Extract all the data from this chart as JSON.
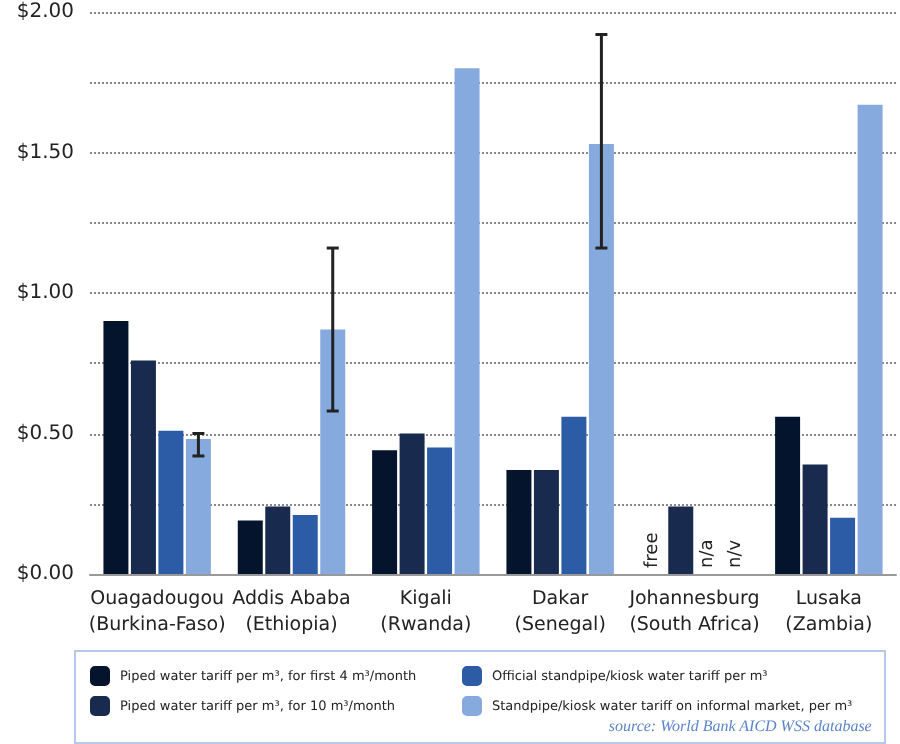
{
  "chart_data": {
    "type": "bar",
    "categories": [
      "Ouagadougou\n(Burkina-Faso)",
      "Addis Ababa\n(Ethiopia)",
      "Kigali\n(Rwanda)",
      "Dakar\n(Senegal)",
      "Johannesburg\n(South Africa)",
      "Lusaka\n(Zambia)"
    ],
    "series": [
      {
        "name": "Piped water tariff per m³, for first 4 m³/month",
        "color": "#03142c",
        "values": [
          0.9,
          0.19,
          0.44,
          0.37,
          null,
          0.56
        ],
        "value_labels": [
          null,
          null,
          null,
          null,
          "free",
          null
        ]
      },
      {
        "name": "Piped water tariff per m³, for 10 m³/month",
        "color": "#182b4f",
        "values": [
          0.76,
          0.24,
          0.5,
          0.37,
          0.24,
          0.39
        ]
      },
      {
        "name": "Official standpipe/kiosk water tariff per m³",
        "color": "#2c5ca5",
        "values": [
          0.51,
          0.21,
          0.45,
          0.56,
          null,
          0.2
        ],
        "value_labels": [
          null,
          null,
          null,
          null,
          "n/a",
          null
        ]
      },
      {
        "name": "Standpipe/kiosk water tariff on informal market, per m³",
        "color": "#87aade",
        "values": [
          0.48,
          0.87,
          1.8,
          1.53,
          null,
          1.67
        ],
        "value_labels": [
          null,
          null,
          null,
          null,
          "n/v",
          null
        ],
        "errors": [
          [
            0.42,
            0.5
          ],
          [
            0.58,
            1.16
          ],
          null,
          [
            1.16,
            1.92
          ],
          null,
          null
        ]
      }
    ],
    "ylim": [
      0,
      2
    ],
    "yticks": [
      {
        "value": 0,
        "label": "$0.00"
      },
      {
        "value": 0.25,
        "label": null
      },
      {
        "value": 0.5,
        "label": "$0.50"
      },
      {
        "value": 0.75,
        "label": null
      },
      {
        "value": 1,
        "label": "$1.00"
      },
      {
        "value": 1.25,
        "label": null
      },
      {
        "value": 1.5,
        "label": "$1.50"
      },
      {
        "value": 1.75,
        "label": null
      },
      {
        "value": 2,
        "label": "$2.00"
      }
    ],
    "grid": "y",
    "line_style": "dotted",
    "legend": "bottom",
    "annotations": [
      "source: World Bank AICD WSS database"
    ]
  }
}
